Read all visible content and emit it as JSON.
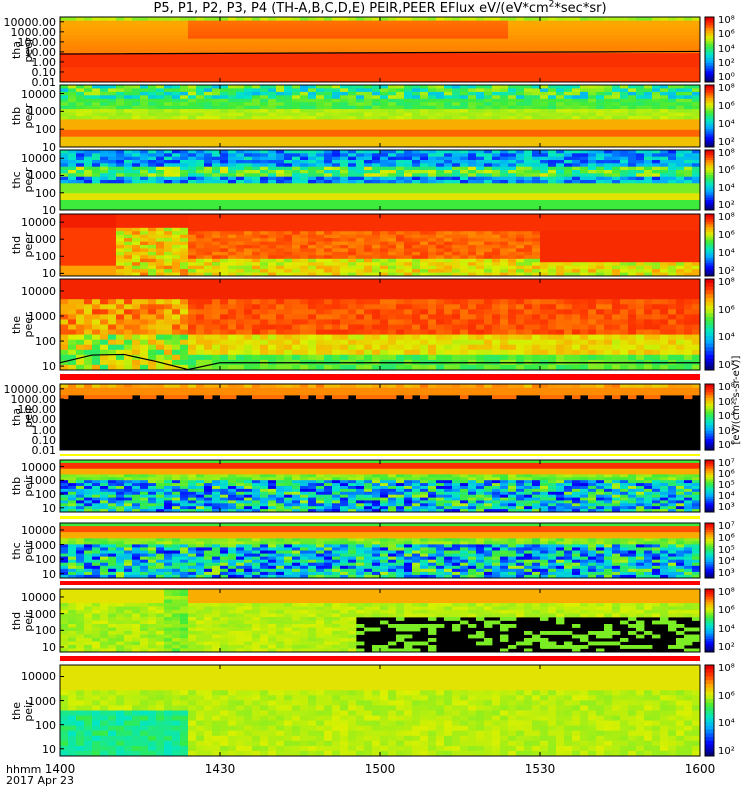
{
  "title": "P5, P1, P2, P3, P4 (TH-A,B,C,D,E) PEIR,PEER EFlux eV/(eV*cm²*sec*sr)",
  "title_parts": {
    "pre": "P5, P1, P2, P3, P4 (TH-A,B,C,D,E) PEIR,PEER EFlux eV/(eV*cm",
    "sup": "2",
    "post": "*sec*sr)"
  },
  "colorbar_label": "[eV/(cm²-s-sr-eV)]",
  "x_axis": {
    "time_label": "hhmm",
    "date_label": "2017 Apr 23",
    "ticks": [
      "1400",
      "1430",
      "1500",
      "1530",
      "1600"
    ]
  },
  "chart_data": {
    "type": "heatmap",
    "x_range": [
      "1400",
      "1600"
    ],
    "panels": [
      {
        "name": "tha peer",
        "label": [
          "tha",
          "peer"
        ],
        "ylim": [
          0.01,
          30000
        ],
        "yscale": "log",
        "yticks": [
          "10000.00",
          "1000.00",
          "100.00",
          "10.00",
          "1.00",
          "0.10",
          "0.01"
        ],
        "cb_ticks": [
          "10⁸",
          "10⁶",
          "10⁴",
          "10²",
          "10⁰"
        ],
        "type": "tha_peer"
      },
      {
        "name": "thb peer",
        "label": [
          "thb",
          "peer"
        ],
        "ylim": [
          10,
          30000
        ],
        "yscale": "log",
        "yticks": [
          "10000",
          "1000",
          "100",
          "10"
        ],
        "cb_ticks": [
          "10⁸",
          "10⁶",
          "10⁴",
          "10²"
        ],
        "type": "noise_band"
      },
      {
        "name": "thc peer",
        "label": [
          "thc",
          "peer"
        ],
        "ylim": [
          10,
          30000
        ],
        "yscale": "log",
        "yticks": [
          "10000",
          "1000",
          "100",
          "10"
        ],
        "cb_ticks": [
          "10⁸",
          "10⁶",
          "10⁴",
          "10²"
        ],
        "type": "noise_band2"
      },
      {
        "name": "thd peer",
        "label": [
          "thd",
          "peer"
        ],
        "ylim": [
          7,
          30000
        ],
        "yscale": "log",
        "yticks": [
          "10000",
          "1000",
          "100",
          "10"
        ],
        "cb_ticks": [
          "10⁸",
          "10⁶",
          "10⁴",
          "10²"
        ],
        "type": "red_fill"
      },
      {
        "name": "the peer",
        "label": [
          "the",
          "peer"
        ],
        "ylim": [
          7,
          30000
        ],
        "yscale": "log",
        "yticks": [
          "10000",
          "1000",
          "100",
          "10"
        ],
        "cb_ticks": [
          "10⁸",
          "10⁶",
          "10⁴",
          "10²"
        ],
        "type": "red_fill2"
      },
      {
        "name": "tha peir",
        "label": [
          "tha",
          "peir"
        ],
        "ylim": [
          0.01,
          30000
        ],
        "yscale": "log",
        "yticks": [
          "10000.00",
          "1000.00",
          "100.00",
          "10.00",
          "1.00",
          "0.10",
          "0.01"
        ],
        "cb_ticks": [
          "10⁸",
          "10⁶",
          "10⁴",
          "10²",
          "10⁰"
        ],
        "type": "tha_peir"
      },
      {
        "name": "thb peir",
        "label": [
          "thb",
          "peir"
        ],
        "ylim": [
          5,
          30000
        ],
        "yscale": "log",
        "yticks": [
          "10000",
          "1000",
          "100",
          "10"
        ],
        "cb_ticks": [
          "10⁷",
          "10⁶",
          "10⁵",
          "10⁴",
          "10³"
        ],
        "type": "ion_noise"
      },
      {
        "name": "thc peir",
        "label": [
          "thc",
          "peir"
        ],
        "ylim": [
          5,
          30000
        ],
        "yscale": "log",
        "yticks": [
          "10000",
          "1000",
          "100",
          "10"
        ],
        "cb_ticks": [
          "10⁷",
          "10⁶",
          "10⁵",
          "10⁴",
          "10³"
        ],
        "type": "ion_noise2"
      },
      {
        "name": "thd peir",
        "label": [
          "thd",
          "peir"
        ],
        "ylim": [
          5,
          30000
        ],
        "yscale": "log",
        "yticks": [
          "10000",
          "1000",
          "100",
          "10"
        ],
        "cb_ticks": [
          "10⁸",
          "10⁶",
          "10⁴",
          "10²"
        ],
        "type": "thd_peir"
      },
      {
        "name": "the peir",
        "label": [
          "the",
          "peir"
        ],
        "ylim": [
          5,
          30000
        ],
        "yscale": "log",
        "yticks": [
          "10000",
          "1000",
          "100",
          "10"
        ],
        "cb_ticks": [
          "10⁸",
          "10⁶",
          "10⁴",
          "10²"
        ],
        "type": "the_peir"
      }
    ]
  }
}
